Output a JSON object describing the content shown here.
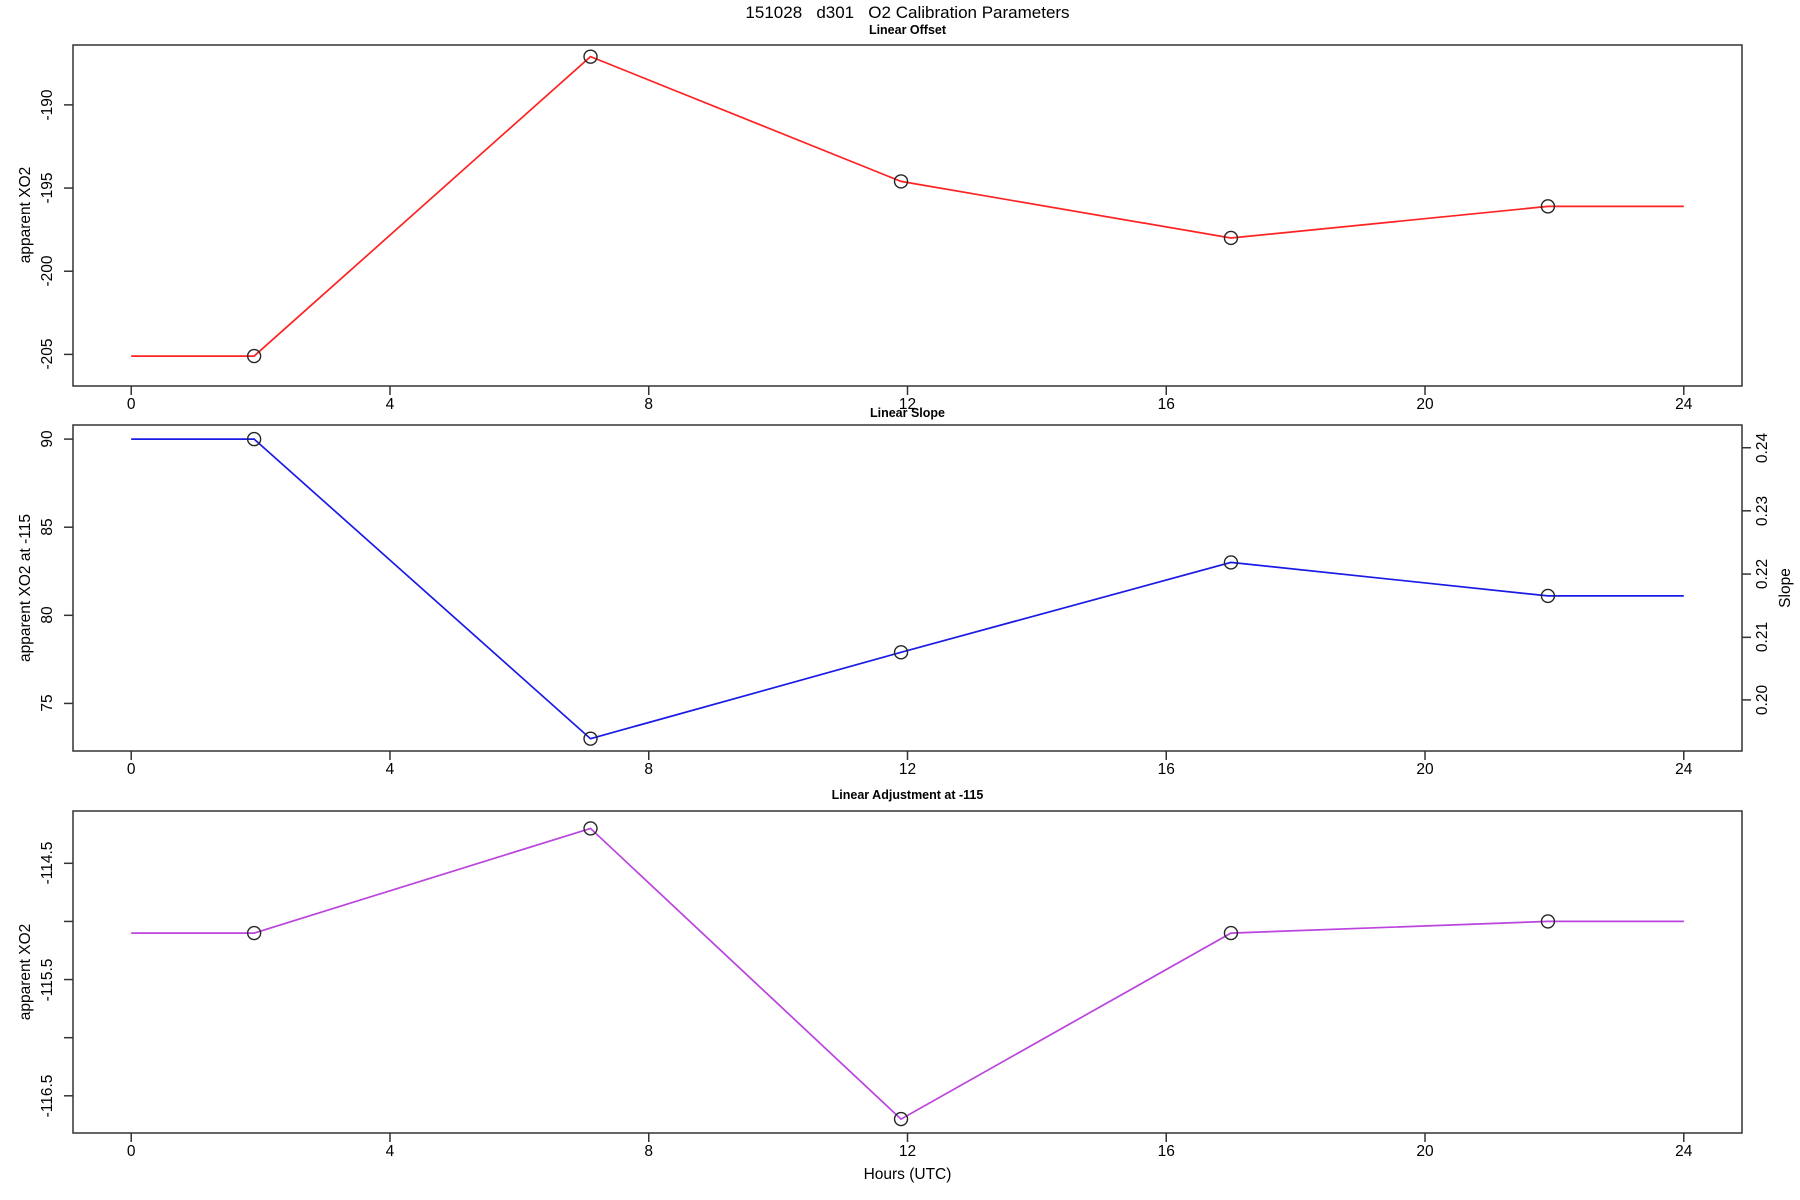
{
  "figure": {
    "title": "151028   d301   O2 Calibration Parameters",
    "xlabel": "Hours (UTC)",
    "background": "#ffffff",
    "axis_color": "#333333",
    "marker_color": "#262626"
  },
  "chart_data": [
    {
      "type": "line",
      "title": "Linear Offset",
      "ylabel": "apparent XO2",
      "series_color": "#ff2222",
      "marker": "open-circle",
      "x": [
        1.9,
        7.1,
        11.9,
        17.0,
        21.9
      ],
      "values": [
        -205.1,
        -187.1,
        -194.6,
        -198.0,
        -196.1
      ],
      "extend_flat_x": [
        0,
        24
      ],
      "xlim": [
        -0.9,
        24.9
      ],
      "ylim": [
        -206.9,
        -186.4
      ],
      "xtick_values": [
        0,
        4,
        8,
        12,
        16,
        20,
        24
      ],
      "xtick_labels": [
        "0",
        "4",
        "8",
        "12",
        "16",
        "20",
        "24"
      ],
      "ytick_values": [
        -205,
        -200,
        -195,
        -190
      ],
      "ytick_labels": [
        "-205",
        "-200",
        "-195",
        "-190"
      ],
      "grid": false
    },
    {
      "type": "line",
      "title": "Linear Slope",
      "ylabel": "apparent XO2 at -115",
      "ylabel_right": "Slope",
      "series_color": "#1a1ae6",
      "marker": "open-circle",
      "x": [
        1.9,
        7.1,
        11.9,
        17.0,
        21.9
      ],
      "values": [
        90.0,
        73.0,
        77.9,
        83.0,
        81.1
      ],
      "extend_flat_x": [
        0,
        24
      ],
      "xlim": [
        -0.9,
        24.9
      ],
      "ylim": [
        72.3,
        90.8
      ],
      "xtick_values": [
        0,
        4,
        8,
        12,
        16,
        20,
        24
      ],
      "xtick_labels": [
        "0",
        "4",
        "8",
        "12",
        "16",
        "20",
        "24"
      ],
      "ytick_values": [
        75,
        80,
        85,
        90
      ],
      "ytick_labels": [
        "75",
        "80",
        "85",
        "90"
      ],
      "yticks_right": [
        {
          "label": "0.20",
          "at": 75.2
        },
        {
          "label": "0.21",
          "at": 78.75
        },
        {
          "label": "0.22",
          "at": 82.34
        },
        {
          "label": "0.23",
          "at": 85.93
        },
        {
          "label": "0.24",
          "at": 89.51
        }
      ],
      "grid": false
    },
    {
      "type": "line",
      "title": "Linear Adjustment at -115",
      "ylabel": "apparent XO2",
      "series_color": "#bb44dd",
      "marker": "open-circle",
      "x": [
        1.9,
        7.1,
        11.9,
        17.0,
        21.9
      ],
      "values": [
        -115.1,
        -114.2,
        -116.7,
        -115.1,
        -115.0
      ],
      "extend_flat_x": [
        0,
        24
      ],
      "xlim": [
        -0.9,
        24.9
      ],
      "ylim": [
        -116.82,
        -114.05
      ],
      "xtick_values": [
        0,
        4,
        8,
        12,
        16,
        20,
        24
      ],
      "xtick_labels": [
        "0",
        "4",
        "8",
        "12",
        "16",
        "20",
        "24"
      ],
      "ytick_values": [
        -116.5,
        -116,
        -115.5,
        -115,
        -114.5
      ],
      "ytick_labels": [
        "-116.5",
        "",
        "-115.5",
        "",
        "-114.5"
      ],
      "grid": false
    }
  ]
}
